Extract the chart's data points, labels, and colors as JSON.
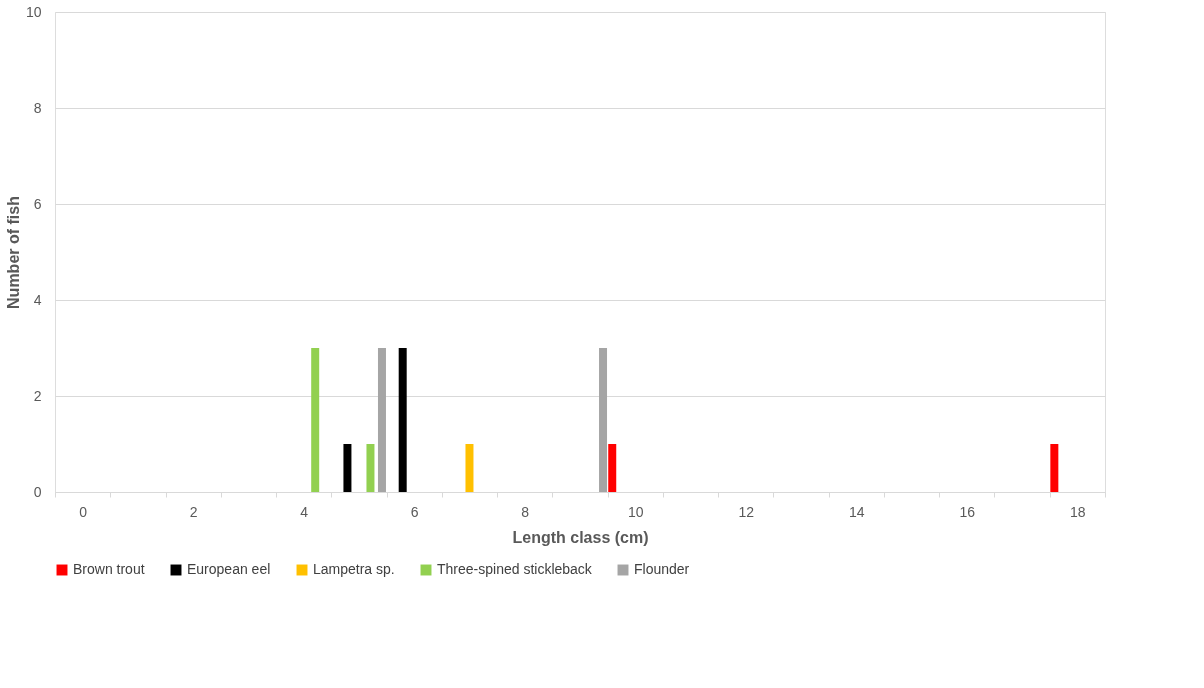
{
  "chart_data": {
    "type": "bar",
    "xlabel": "Length class (cm)",
    "ylabel": "Number of fish",
    "categories": [
      "0",
      null,
      "2",
      null,
      "4",
      null,
      "6",
      null,
      "8",
      null,
      "10",
      null,
      "12",
      null,
      "14",
      null,
      "16",
      null,
      "18"
    ],
    "series": [
      {
        "name": "Brown trout",
        "color": "#ff0000",
        "values": [
          0,
          0,
          0,
          0,
          0,
          0,
          0,
          0,
          0,
          0,
          1,
          0,
          0,
          0,
          0,
          0,
          0,
          0,
          1
        ]
      },
      {
        "name": "European eel",
        "color": "#000000",
        "values": [
          0,
          0,
          0,
          0,
          0,
          1,
          3,
          0,
          0,
          0,
          0,
          0,
          0,
          0,
          0,
          0,
          0,
          0,
          0
        ]
      },
      {
        "name": "Lampetra sp.",
        "color": "#ffc000",
        "values": [
          0,
          0,
          0,
          0,
          0,
          0,
          0,
          1,
          0,
          0,
          0,
          0,
          0,
          0,
          0,
          0,
          0,
          0,
          0
        ]
      },
      {
        "name": "Three-spined stickleback",
        "color": "#92d050",
        "values": [
          0,
          0,
          0,
          0,
          3,
          1,
          0,
          0,
          0,
          0,
          0,
          0,
          0,
          0,
          0,
          0,
          0,
          0,
          0
        ]
      },
      {
        "name": "Flounder",
        "color": "#a5a5a5",
        "values": [
          0,
          0,
          0,
          0,
          0,
          3,
          0,
          0,
          0,
          3,
          0,
          0,
          0,
          0,
          0,
          0,
          0,
          0,
          0
        ]
      }
    ],
    "ylim": [
      0,
      10
    ],
    "yticks": [
      0,
      2,
      4,
      6,
      8,
      10
    ],
    "grid": "y",
    "legend": "bottom"
  }
}
